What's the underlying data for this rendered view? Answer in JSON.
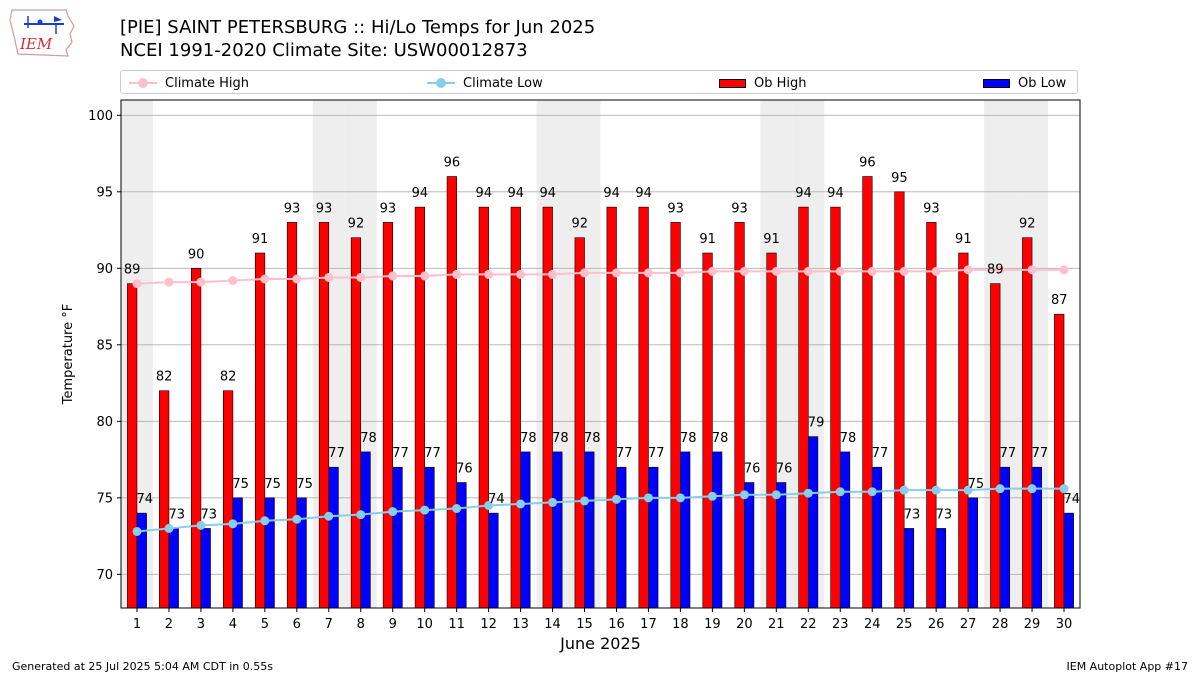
{
  "header": {
    "title_line1": "[PIE] SAINT PETERSBURG :: Hi/Lo Temps for Jun 2025",
    "title_line2": "NCEI 1991-2020 Climate Site: USW00012873"
  },
  "logo_text": "IEM",
  "footer": {
    "left": "Generated at 25 Jul 2025 5:04 AM CDT in 0.55s",
    "right": "IEM Autoplot App #17"
  },
  "colors": {
    "ob_high": "#ff0000",
    "ob_low": "#0000ff",
    "climate_high": "#ffc0cb",
    "climate_low": "#87ceeb",
    "weekend_band": "#eeeeee",
    "grid": "#b0b0b0"
  },
  "chart_data": {
    "type": "bar",
    "title": "[PIE] SAINT PETERSBURG :: Hi/Lo Temps for Jun 2025",
    "subtitle": "NCEI 1991-2020 Climate Site: USW00012873",
    "xlabel": "June 2025",
    "ylabel": "Temperature °F",
    "ylim": [
      67.8,
      101
    ],
    "yticks": [
      70,
      75,
      80,
      85,
      90,
      95,
      100
    ],
    "grid": true,
    "legend_position": "top",
    "categories": [
      "1",
      "2",
      "3",
      "4",
      "5",
      "6",
      "7",
      "8",
      "9",
      "10",
      "11",
      "12",
      "13",
      "14",
      "15",
      "16",
      "17",
      "18",
      "19",
      "20",
      "21",
      "22",
      "23",
      "24",
      "25",
      "26",
      "27",
      "28",
      "29",
      "30"
    ],
    "weekend_days": [
      1,
      7,
      8,
      14,
      15,
      21,
      22,
      28,
      29
    ],
    "series": [
      {
        "name": "Ob High",
        "kind": "bar",
        "values": [
          89,
          82,
          90,
          82,
          91,
          93,
          93,
          92,
          93,
          94,
          96,
          94,
          94,
          94,
          92,
          94,
          94,
          93,
          91,
          93,
          91,
          94,
          94,
          96,
          95,
          93,
          91,
          89,
          92,
          87
        ]
      },
      {
        "name": "Ob Low",
        "kind": "bar",
        "values": [
          74,
          73,
          73,
          75,
          75,
          75,
          77,
          78,
          77,
          77,
          76,
          74,
          78,
          78,
          78,
          77,
          77,
          78,
          78,
          76,
          76,
          79,
          78,
          77,
          73,
          73,
          75,
          77,
          77,
          74
        ]
      },
      {
        "name": "Climate High",
        "kind": "line",
        "values": [
          89.0,
          89.1,
          89.1,
          89.2,
          89.3,
          89.3,
          89.4,
          89.4,
          89.5,
          89.5,
          89.6,
          89.6,
          89.6,
          89.6,
          89.7,
          89.7,
          89.7,
          89.7,
          89.8,
          89.8,
          89.8,
          89.8,
          89.8,
          89.8,
          89.8,
          89.8,
          89.9,
          89.9,
          89.9,
          89.9
        ]
      },
      {
        "name": "Climate Low",
        "kind": "line",
        "values": [
          72.8,
          73.0,
          73.2,
          73.3,
          73.5,
          73.6,
          73.8,
          73.9,
          74.1,
          74.2,
          74.3,
          74.5,
          74.6,
          74.7,
          74.8,
          74.9,
          75.0,
          75.0,
          75.1,
          75.2,
          75.2,
          75.3,
          75.4,
          75.4,
          75.5,
          75.5,
          75.5,
          75.6,
          75.6,
          75.6
        ]
      }
    ]
  }
}
